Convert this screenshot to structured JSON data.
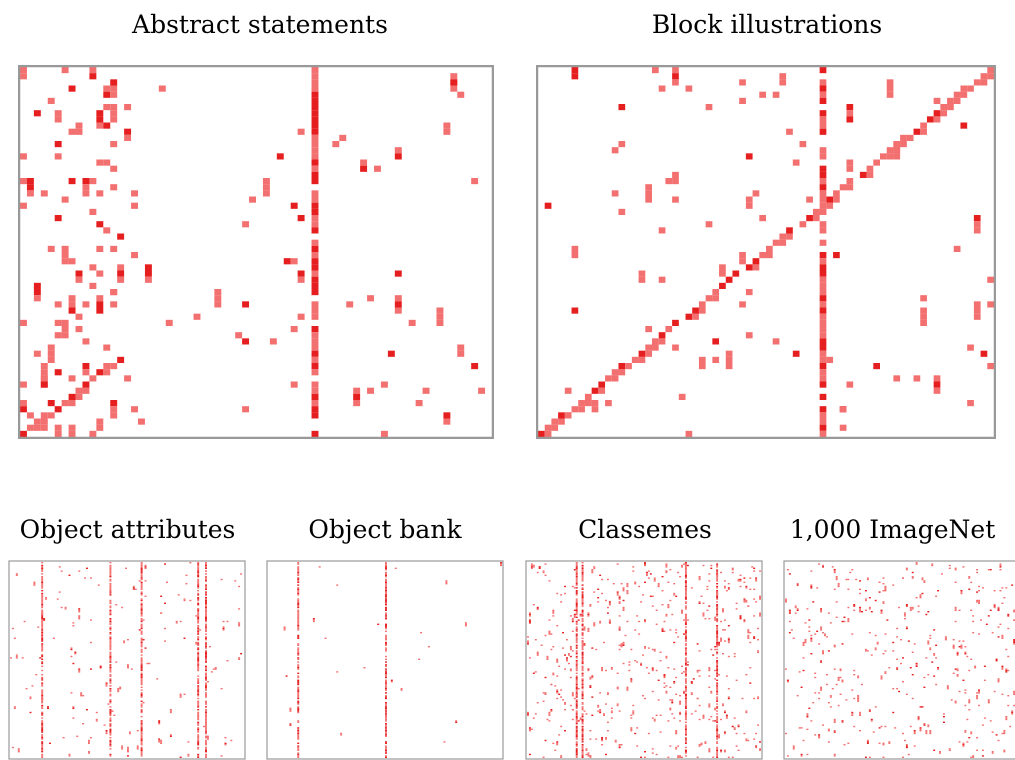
{
  "panel_titles": [
    "Abstract statements",
    "Block illustrations",
    "Object attributes",
    "Object bank",
    "Classemes",
    "1,000 ImageNet"
  ],
  "chart_data": [
    {
      "type": "heatmap",
      "title": "Abstract statements",
      "rows": 60,
      "cols": 68,
      "row_shift": -1.0,
      "col_shift": 0.4,
      "grid": false,
      "frame_color": "#999999",
      "colors": {
        "medium": "#f37070",
        "strong": "#e51f1f"
      },
      "notes": "sparse matrix with scattered cells, one dense column near index 42 and a lower-left diagonal band",
      "dense_cols": [
        42
      ],
      "diag_frac": 0.22,
      "sparsity": 0.035
    },
    {
      "type": "heatmap",
      "title": "Block illustrations",
      "rows": 60,
      "cols": 68,
      "row_shift": -1.0,
      "col_shift": 0.4,
      "grid": false,
      "frame_color": "#999999",
      "colors": {
        "medium": "#f37070",
        "strong": "#e51f1f"
      },
      "notes": "strong main diagonal from bottom-left to top-right, dense column near index 42",
      "dense_cols": [
        42
      ],
      "diag_frac": 1.0,
      "sparsity": 0.02
    },
    {
      "type": "heatmap",
      "title": "Object attributes",
      "rows": 140,
      "cols": 120,
      "row_shift": 0,
      "col_shift": 0,
      "grid": false,
      "frame_color": "#999999",
      "colors": {
        "medium": "#f37070",
        "strong": "#e51f1f"
      },
      "dense_cols": [
        16,
        51,
        67,
        96,
        100
      ],
      "diag_frac": 0,
      "sparsity": 0.01
    },
    {
      "type": "heatmap",
      "title": "Object bank",
      "rows": 140,
      "cols": 120,
      "row_shift": 0,
      "col_shift": 0,
      "grid": false,
      "frame_color": "#999999",
      "colors": {
        "medium": "#f37070",
        "strong": "#e51f1f"
      },
      "dense_cols": [
        15,
        60
      ],
      "diag_frac": 0,
      "sparsity": 0.0015
    },
    {
      "type": "heatmap",
      "title": "Classemes",
      "rows": 140,
      "cols": 120,
      "row_shift": 0,
      "col_shift": 0,
      "grid": false,
      "frame_color": "#999999",
      "colors": {
        "medium": "#f37070",
        "strong": "#e51f1f"
      },
      "dense_cols": [
        25,
        28,
        81,
        97
      ],
      "diag_frac": 0,
      "sparsity": 0.03
    },
    {
      "type": "heatmap",
      "title": "1,000 ImageNet",
      "rows": 140,
      "cols": 120,
      "row_shift": 0,
      "col_shift": 0,
      "grid": false,
      "frame_color": "#999999",
      "colors": {
        "medium": "#f37070",
        "strong": "#e51f1f"
      },
      "dense_cols": [],
      "diag_frac": 0,
      "sparsity": 0.025
    }
  ]
}
